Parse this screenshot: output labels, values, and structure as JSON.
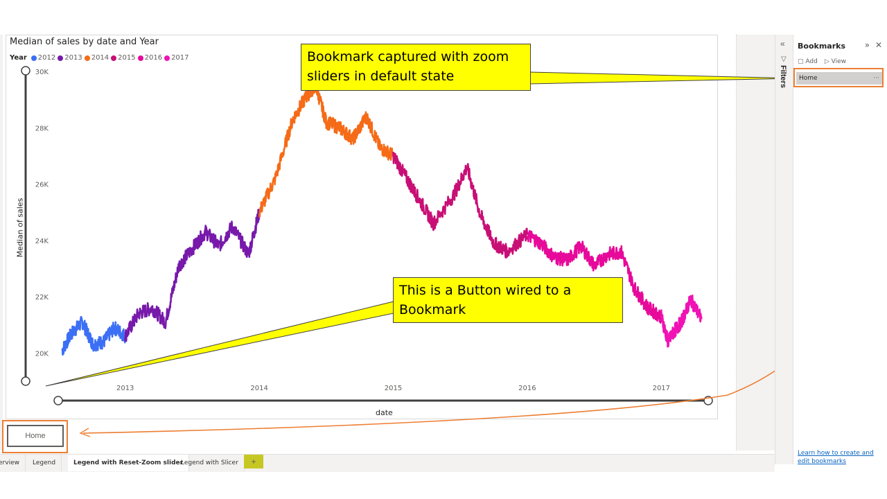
{
  "visual": {
    "title": "Median of sales by date and Year",
    "legend_title": "Year",
    "y_axis_title": "Median of sales",
    "x_axis_title": "date"
  },
  "chart_data": {
    "type": "line",
    "title": "Median of sales by date and Year",
    "xlabel": "date",
    "ylabel": "Median of sales",
    "y_ticks": [
      "30K",
      "28K",
      "26K",
      "24K",
      "22K",
      "20K"
    ],
    "x_ticks": [
      "2013",
      "2014",
      "2015",
      "2016",
      "2017"
    ],
    "ylim": [
      19000,
      30000
    ],
    "xlim": [
      2012.5,
      2017.35
    ],
    "legend_position": "top-left",
    "series": [
      {
        "name": "2012",
        "color": "#3b6ff5",
        "x": [
          2012.53,
          2012.6,
          2012.68,
          2012.76,
          2012.84,
          2012.92,
          2013.0
        ],
        "y": [
          20100,
          20700,
          21100,
          20300,
          20400,
          20900,
          20600
        ]
      },
      {
        "name": "2013",
        "color": "#7719aa",
        "x": [
          2013.0,
          2013.1,
          2013.2,
          2013.3,
          2013.4,
          2013.5,
          2013.6,
          2013.7,
          2013.8,
          2013.92,
          2014.0
        ],
        "y": [
          20600,
          21400,
          21600,
          21100,
          23100,
          23700,
          24300,
          23800,
          24500,
          23500,
          25000
        ]
      },
      {
        "name": "2014",
        "color": "#f56b17",
        "x": [
          2014.0,
          2014.12,
          2014.25,
          2014.35,
          2014.42,
          2014.5,
          2014.6,
          2014.7,
          2014.8,
          2014.9,
          2015.0
        ],
        "y": [
          25000,
          26200,
          28300,
          29100,
          29500,
          28200,
          28000,
          27600,
          28400,
          27300,
          27000
        ]
      },
      {
        "name": "2015",
        "color": "#c80f76",
        "x": [
          2015.0,
          2015.1,
          2015.2,
          2015.3,
          2015.45,
          2015.55,
          2015.65,
          2015.75,
          2015.85,
          2016.0
        ],
        "y": [
          27000,
          26200,
          25400,
          24600,
          25600,
          26600,
          24900,
          23900,
          23600,
          24200
        ]
      },
      {
        "name": "2016",
        "color": "#e6099a",
        "x": [
          2016.0,
          2016.1,
          2016.2,
          2016.3,
          2016.4,
          2016.5,
          2016.6,
          2016.7,
          2016.8,
          2016.9,
          2017.0
        ],
        "y": [
          24200,
          23900,
          23400,
          23300,
          23800,
          23100,
          23500,
          23600,
          22300,
          21600,
          21300
        ]
      },
      {
        "name": "2017",
        "color": "#f012b4",
        "x": [
          2017.0,
          2017.05,
          2017.1,
          2017.15,
          2017.22,
          2017.3
        ],
        "y": [
          21300,
          20400,
          20800,
          21100,
          21900,
          21200
        ]
      }
    ]
  },
  "callouts": {
    "bookmark_note": "Bookmark captured with zoom sliders in default state",
    "button_note": "This is a Button wired to a Bookmark"
  },
  "home_button": {
    "label": "Home"
  },
  "filters_label": "Filters",
  "bookmarks_pane": {
    "title": "Bookmarks",
    "add_label": "Add",
    "view_label": "View",
    "items": [
      {
        "label": "Home"
      }
    ],
    "learn_link": "Learn how to create and edit bookmarks"
  },
  "tabs": [
    {
      "label": "erview",
      "active": false
    },
    {
      "label": "Legend",
      "active": false
    },
    {
      "label": "Legend with Reset-Zoom slider",
      "active": true
    },
    {
      "label": "Legend with Slicer",
      "active": false
    }
  ],
  "add_tab_label": "+",
  "colors": {
    "accent": "#ed7d31",
    "callout": "#ffff00"
  }
}
